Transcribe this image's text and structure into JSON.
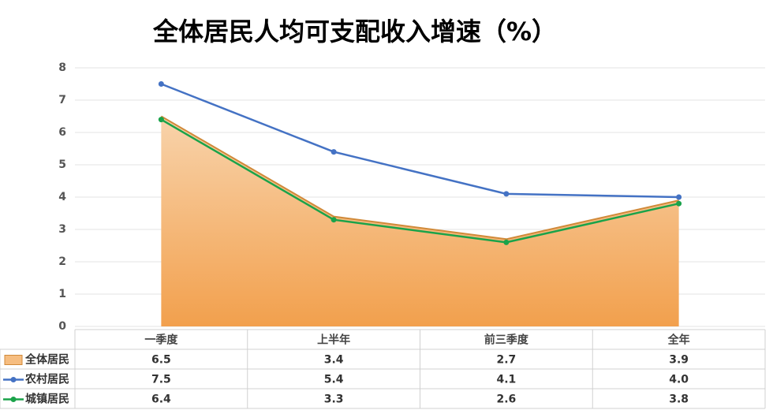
{
  "chart_data": {
    "type": "area-line-table",
    "title": "全体居民人均可支配收入增速（%）",
    "categories": [
      "一季度",
      "上半年",
      "前三季度",
      "全年"
    ],
    "series": [
      {
        "name": "全体居民",
        "kind": "area",
        "color": "#f2a04d",
        "values": [
          6.5,
          3.4,
          2.7,
          3.9
        ],
        "value_labels": [
          "6.5",
          "3.4",
          "2.7",
          "3.9"
        ]
      },
      {
        "name": "农村居民",
        "kind": "line",
        "color": "#4472c4",
        "values": [
          7.5,
          5.4,
          4.1,
          4.0
        ],
        "value_labels": [
          "7.5",
          "5.4",
          "4.1",
          "4.0"
        ]
      },
      {
        "name": "城镇居民",
        "kind": "line",
        "color": "#1aa34a",
        "values": [
          6.4,
          3.3,
          2.6,
          3.8
        ],
        "value_labels": [
          "6.4",
          "3.3",
          "2.6",
          "3.8"
        ]
      }
    ],
    "ylim": [
      0,
      8
    ],
    "yticks": [
      0,
      1,
      2,
      3,
      4,
      5,
      6,
      7,
      8
    ],
    "grid": true
  }
}
